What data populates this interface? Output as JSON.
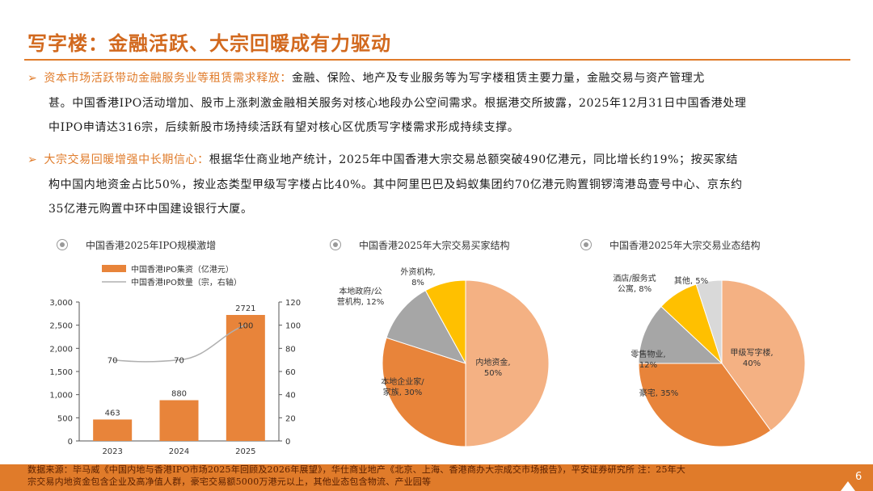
{
  "title": "写字楼：金融活跃、大宗回暖成有力驱动",
  "bullets": [
    {
      "lead": "资本市场活跃带动金融服务业等租赁需求释放：",
      "line1": "金融、保险、地产及专业服务等为写字楼租赁主要力量，金融交易与资产管理尤",
      "line2": "甚。中国香港IPO活动增加、股市上涨刺激金融相关服务对核心地段办公空间需求。根据港交所披露，2025年12月31日中国香港处理",
      "line3": "中IPO申请达316宗，后续新股市场持续活跃有望对核心区优质写字楼需求形成持续支撑。"
    },
    {
      "lead": "大宗交易回暖增强中长期信心：",
      "line1": "根据华仕商业地产统计，2025年中国香港大宗交易总额突破490亿港元，同比增长约19%；按买家结",
      "line2": "构中国内地资金占比50%，按业态类型甲级写字楼占比40%。其中阿里巴巴及蚂蚁集团约70亿港元购置铜锣湾港岛壹号中心、京东约",
      "line3": "35亿港元购置中环中国建设银行大厦。"
    }
  ],
  "charts": {
    "ipo_title": "中国香港2025年IPO规模激增",
    "buyer_title": "中国香港2025年大宗交易买家结构",
    "type_title": "中国香港2025年大宗交易业态结构"
  },
  "chart_data": [
    {
      "type": "bar",
      "title": "中国香港2025年IPO规模激增",
      "categories": [
        "2023",
        "2024",
        "2025"
      ],
      "series": [
        {
          "name": "中国香港IPO集资（亿港元）",
          "values": [
            463,
            880,
            2721
          ],
          "axis": "left",
          "color": "#e8843a"
        },
        {
          "name": "中国香港IPO数量（宗，右轴）",
          "values": [
            70,
            70,
            100
          ],
          "axis": "right",
          "color": "#b0b0b0",
          "type": "line"
        }
      ],
      "ylim": [
        0,
        3000
      ],
      "yticks": [
        "0",
        "500",
        "1,000",
        "1,500",
        "2,000",
        "2,500",
        "3,000"
      ],
      "y2lim": [
        0,
        120
      ],
      "y2ticks": [
        "0",
        "20",
        "40",
        "60",
        "80",
        "100",
        "120"
      ],
      "bar_labels": [
        "463",
        "880",
        "2721"
      ],
      "line_labels": [
        "70",
        "70",
        "100"
      ]
    },
    {
      "type": "pie",
      "title": "中国香港2025年大宗交易买家结构",
      "slices": [
        {
          "label": [
            "内地资金,",
            "50%"
          ],
          "value": 50,
          "color": "#f4b183"
        },
        {
          "label": [
            "本地企业家/",
            "家族, 30%"
          ],
          "value": 30,
          "color": "#e8843a"
        },
        {
          "label": [
            "本地政府/公",
            "营机构, 12%"
          ],
          "value": 12,
          "color": "#a6a6a6"
        },
        {
          "label": [
            "外资机构,",
            "8%"
          ],
          "value": 8,
          "color": "#ffc000"
        }
      ]
    },
    {
      "type": "pie",
      "title": "中国香港2025年大宗交易业态结构",
      "slices": [
        {
          "label": [
            "甲级写字楼,",
            "40%"
          ],
          "value": 40,
          "color": "#f4b183"
        },
        {
          "label": [
            "豪宅, 35%"
          ],
          "value": 35,
          "color": "#e8843a"
        },
        {
          "label": [
            "零售物业,",
            "12%"
          ],
          "value": 12,
          "color": "#a6a6a6"
        },
        {
          "label": [
            "酒店/服务式",
            "公寓, 8%"
          ],
          "value": 8,
          "color": "#ffc000"
        },
        {
          "label": [
            "其他, 5%"
          ],
          "value": 5,
          "color": "#d9d9d9"
        }
      ]
    }
  ],
  "source_line1": "数据来源：毕马威《中国内地与香港IPO市场2025年回顾及2026年展望》，华仕商业地产《北京、上海、香港商办大宗成交市场报告》，平安证券研究所 注：25年大",
  "source_line2": "宗交易内地资金包含企业及高净值人群，豪宅交易额5000万港元以上，其他业态包含物流、产业园等",
  "page_number": "6"
}
